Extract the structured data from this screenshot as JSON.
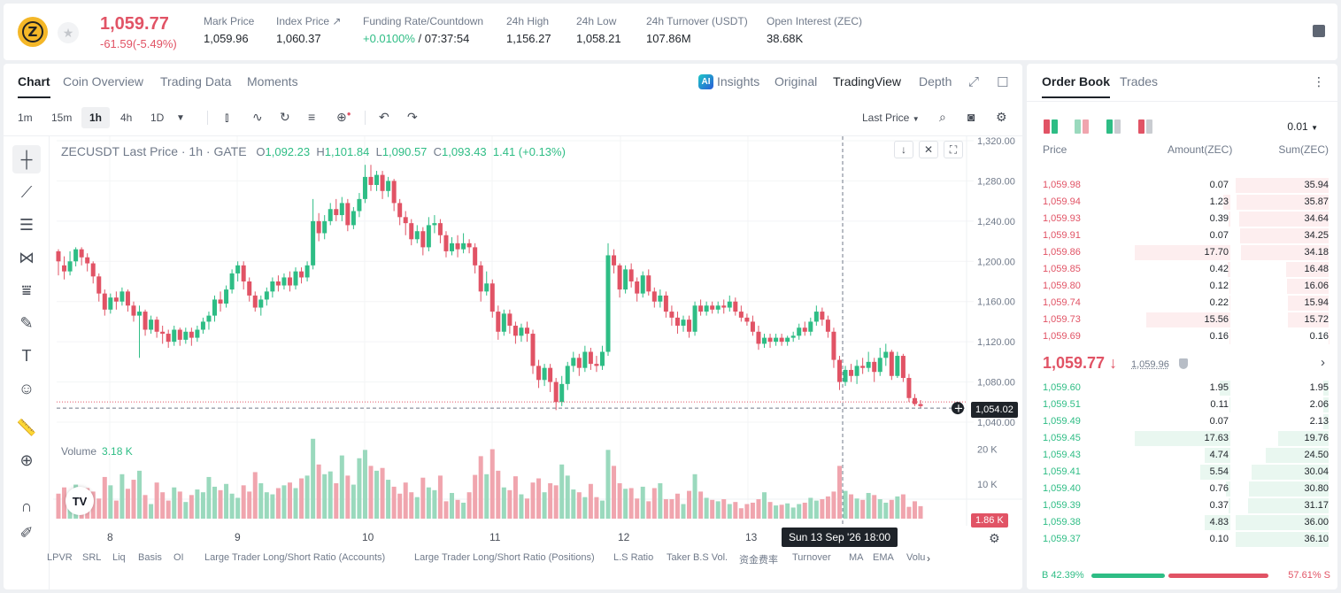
{
  "header": {
    "coin_symbol": "Z",
    "last_price": "1,059.77",
    "change": "-61.59(-5.49%)",
    "stats": [
      {
        "label": "Mark Price",
        "value": "1,059.96"
      },
      {
        "label": "Index Price ↗",
        "value": "1,060.37"
      },
      {
        "label": "Funding Rate/Countdown",
        "value_rate": "+0.0100%",
        "value_count": " / 07:37:54"
      },
      {
        "label": "24h High",
        "value": "1,156.27"
      },
      {
        "label": "24h Low",
        "value": "1,058.21"
      },
      {
        "label": "24h Turnover (USDT)",
        "value": "107.86M"
      },
      {
        "label": "Open Interest (ZEC)",
        "value": "38.68K"
      }
    ]
  },
  "chart_tabs": {
    "chart": "Chart",
    "coin_overview": "Coin Overview",
    "trading_data": "Trading Data",
    "moments": "Moments",
    "ai_badge": "AI",
    "insights": "Insights",
    "original": "Original",
    "tradingview": "TradingView",
    "depth": "Depth"
  },
  "toolbar": {
    "intervals": [
      "1m",
      "15m",
      "1h",
      "4h",
      "1D"
    ],
    "selected_interval": "1h",
    "last_price_select": "Last Price"
  },
  "legend": {
    "symbol": "ZECUSDT Last Price · 1h · GATE",
    "o_label": "O",
    "o": "1,092.23",
    "h_label": "H",
    "h": "1,101.84",
    "l_label": "L",
    "l": "1,090.57",
    "c_label": "C",
    "c": "1,093.43",
    "delta": "1.41 (+0.13%)"
  },
  "volume_legend": {
    "label": "Volume",
    "value": "3.18 K"
  },
  "price_tag": "1,054.02",
  "vol_tag": "1.86 K",
  "crosshair_time": "Sun 13 Sep '26   18:00",
  "indicators": [
    "LPVR",
    "SRL",
    "Liq",
    "Basis",
    "OI",
    "Large Trader Long/Short Ratio (Accounts)",
    "Large Trader Long/Short Ratio (Positions)",
    "L.S Ratio",
    "Taker B.S Vol.",
    "资金费率",
    "Turnover",
    "MA",
    "EMA",
    "Volu"
  ],
  "icons": {
    "coin_logo": "zcash-logo-icon",
    "favorite": "star-icon",
    "expand": "expand-icon",
    "window": "window-icon",
    "search": "search-icon",
    "camera": "camera-icon",
    "settings": "gear-icon"
  },
  "chart_data": {
    "type": "candlestick",
    "title": "ZECUSDT Last Price · 1h · GATE",
    "x_tick_labels": [
      "8",
      "9",
      "10",
      "11",
      "12",
      "13"
    ],
    "y_tick_labels": [
      "1,320.00",
      "1,280.00",
      "1,240.00",
      "1,200.00",
      "1,160.00",
      "1,120.00",
      "1,080.00",
      "1,040.00"
    ],
    "ylim": [
      1040,
      1320
    ],
    "volume_tick_labels": [
      "20 K",
      "10 K"
    ],
    "volume_ylim": [
      0,
      26000
    ],
    "candles": [
      [
        1210,
        1200,
        1212,
        1186
      ],
      [
        1196,
        1190,
        1205,
        1182
      ],
      [
        1190,
        1200,
        1210,
        1186
      ],
      [
        1200,
        1212,
        1214,
        1195
      ],
      [
        1212,
        1204,
        1214,
        1196
      ],
      [
        1204,
        1198,
        1208,
        1190
      ],
      [
        1198,
        1185,
        1200,
        1178
      ],
      [
        1185,
        1168,
        1188,
        1160
      ],
      [
        1168,
        1152,
        1172,
        1146
      ],
      [
        1152,
        1164,
        1168,
        1148
      ],
      [
        1164,
        1160,
        1170,
        1152
      ],
      [
        1160,
        1170,
        1174,
        1156
      ],
      [
        1170,
        1156,
        1172,
        1150
      ],
      [
        1156,
        1146,
        1160,
        1140
      ],
      [
        1146,
        1150,
        1156,
        1104
      ],
      [
        1150,
        1132,
        1152,
        1126
      ],
      [
        1132,
        1142,
        1146,
        1128
      ],
      [
        1142,
        1130,
        1145,
        1124
      ],
      [
        1130,
        1128,
        1136,
        1118
      ],
      [
        1128,
        1120,
        1132,
        1114
      ],
      [
        1120,
        1132,
        1136,
        1116
      ],
      [
        1132,
        1122,
        1134,
        1116
      ],
      [
        1122,
        1130,
        1134,
        1118
      ],
      [
        1130,
        1124,
        1134,
        1116
      ],
      [
        1124,
        1132,
        1136,
        1120
      ],
      [
        1132,
        1140,
        1144,
        1128
      ],
      [
        1140,
        1146,
        1150,
        1132
      ],
      [
        1146,
        1162,
        1166,
        1140
      ],
      [
        1162,
        1158,
        1170,
        1150
      ],
      [
        1158,
        1172,
        1176,
        1154
      ],
      [
        1172,
        1188,
        1192,
        1168
      ],
      [
        1188,
        1196,
        1200,
        1180
      ],
      [
        1196,
        1180,
        1200,
        1172
      ],
      [
        1180,
        1166,
        1184,
        1160
      ],
      [
        1166,
        1154,
        1170,
        1150
      ],
      [
        1154,
        1162,
        1166,
        1146
      ],
      [
        1162,
        1170,
        1174,
        1156
      ],
      [
        1170,
        1180,
        1184,
        1164
      ],
      [
        1180,
        1176,
        1186,
        1170
      ],
      [
        1176,
        1184,
        1188,
        1172
      ],
      [
        1184,
        1176,
        1190,
        1170
      ],
      [
        1176,
        1190,
        1194,
        1172
      ],
      [
        1190,
        1184,
        1194,
        1178
      ],
      [
        1184,
        1196,
        1200,
        1180
      ],
      [
        1196,
        1240,
        1262,
        1192
      ],
      [
        1240,
        1228,
        1248,
        1220
      ],
      [
        1228,
        1240,
        1246,
        1222
      ],
      [
        1240,
        1252,
        1258,
        1236
      ],
      [
        1252,
        1246,
        1262,
        1240
      ],
      [
        1246,
        1258,
        1264,
        1240
      ],
      [
        1258,
        1236,
        1262,
        1230
      ],
      [
        1236,
        1250,
        1254,
        1232
      ],
      [
        1250,
        1262,
        1268,
        1244
      ],
      [
        1262,
        1284,
        1296,
        1258
      ],
      [
        1284,
        1276,
        1296,
        1270
      ],
      [
        1276,
        1286,
        1290,
        1270
      ],
      [
        1286,
        1270,
        1290,
        1262
      ],
      [
        1270,
        1280,
        1284,
        1264
      ],
      [
        1280,
        1258,
        1282,
        1250
      ],
      [
        1258,
        1244,
        1262,
        1236
      ],
      [
        1244,
        1238,
        1250,
        1226
      ],
      [
        1238,
        1222,
        1242,
        1216
      ],
      [
        1222,
        1230,
        1236,
        1218
      ],
      [
        1230,
        1214,
        1234,
        1206
      ],
      [
        1214,
        1236,
        1244,
        1210
      ],
      [
        1236,
        1238,
        1246,
        1228
      ],
      [
        1238,
        1226,
        1242,
        1218
      ],
      [
        1226,
        1210,
        1230,
        1204
      ],
      [
        1210,
        1218,
        1224,
        1206
      ],
      [
        1218,
        1212,
        1226,
        1204
      ],
      [
        1212,
        1218,
        1228,
        1208
      ],
      [
        1218,
        1214,
        1222,
        1208
      ],
      [
        1214,
        1196,
        1218,
        1188
      ],
      [
        1196,
        1170,
        1200,
        1160
      ],
      [
        1170,
        1178,
        1190,
        1166
      ],
      [
        1178,
        1150,
        1182,
        1144
      ],
      [
        1150,
        1130,
        1156,
        1122
      ],
      [
        1130,
        1148,
        1152,
        1126
      ],
      [
        1148,
        1136,
        1152,
        1128
      ],
      [
        1136,
        1126,
        1140,
        1118
      ],
      [
        1126,
        1134,
        1138,
        1120
      ],
      [
        1134,
        1128,
        1140,
        1120
      ],
      [
        1128,
        1096,
        1132,
        1088
      ],
      [
        1096,
        1082,
        1102,
        1074
      ],
      [
        1082,
        1094,
        1098,
        1076
      ],
      [
        1094,
        1080,
        1098,
        1070
      ],
      [
        1080,
        1060,
        1084,
        1052
      ],
      [
        1060,
        1078,
        1086,
        1056
      ],
      [
        1078,
        1096,
        1100,
        1072
      ],
      [
        1096,
        1104,
        1110,
        1090
      ],
      [
        1104,
        1094,
        1108,
        1086
      ],
      [
        1094,
        1110,
        1116,
        1090
      ],
      [
        1110,
        1098,
        1114,
        1092
      ],
      [
        1098,
        1096,
        1106,
        1090
      ],
      [
        1096,
        1110,
        1116,
        1092
      ],
      [
        1110,
        1206,
        1218,
        1106
      ],
      [
        1206,
        1196,
        1212,
        1188
      ],
      [
        1196,
        1172,
        1198,
        1164
      ],
      [
        1172,
        1192,
        1196,
        1168
      ],
      [
        1192,
        1180,
        1198,
        1174
      ],
      [
        1180,
        1168,
        1184,
        1160
      ],
      [
        1168,
        1186,
        1190,
        1164
      ],
      [
        1186,
        1170,
        1192,
        1166
      ],
      [
        1170,
        1160,
        1174,
        1154
      ],
      [
        1160,
        1166,
        1172,
        1154
      ],
      [
        1166,
        1150,
        1170,
        1144
      ],
      [
        1150,
        1144,
        1156,
        1136
      ],
      [
        1144,
        1136,
        1150,
        1128
      ],
      [
        1136,
        1142,
        1146,
        1130
      ],
      [
        1142,
        1130,
        1146,
        1124
      ],
      [
        1130,
        1156,
        1160,
        1126
      ],
      [
        1156,
        1150,
        1162,
        1146
      ],
      [
        1150,
        1156,
        1160,
        1146
      ],
      [
        1156,
        1152,
        1160,
        1148
      ],
      [
        1152,
        1156,
        1160,
        1148
      ],
      [
        1156,
        1154,
        1162,
        1148
      ],
      [
        1154,
        1160,
        1166,
        1150
      ],
      [
        1160,
        1150,
        1164,
        1146
      ],
      [
        1150,
        1144,
        1156,
        1140
      ],
      [
        1144,
        1140,
        1148,
        1136
      ],
      [
        1140,
        1130,
        1146,
        1126
      ],
      [
        1130,
        1118,
        1136,
        1112
      ],
      [
        1118,
        1124,
        1128,
        1114
      ],
      [
        1124,
        1120,
        1128,
        1114
      ],
      [
        1120,
        1124,
        1128,
        1116
      ],
      [
        1124,
        1120,
        1128,
        1116
      ],
      [
        1120,
        1124,
        1126,
        1116
      ],
      [
        1124,
        1126,
        1130,
        1120
      ],
      [
        1126,
        1134,
        1138,
        1122
      ],
      [
        1134,
        1130,
        1140,
        1126
      ],
      [
        1130,
        1140,
        1144,
        1126
      ],
      [
        1140,
        1150,
        1156,
        1136
      ],
      [
        1150,
        1142,
        1154,
        1136
      ],
      [
        1142,
        1130,
        1146,
        1124
      ],
      [
        1130,
        1102,
        1134,
        1094
      ],
      [
        1102,
        1080,
        1106,
        1072
      ],
      [
        1080,
        1092,
        1096,
        1076
      ],
      [
        1092,
        1086,
        1098,
        1080
      ],
      [
        1086,
        1096,
        1102,
        1078
      ],
      [
        1096,
        1094,
        1104,
        1088
      ],
      [
        1094,
        1100,
        1110,
        1090
      ],
      [
        1100,
        1090,
        1104,
        1080
      ],
      [
        1090,
        1104,
        1114,
        1086
      ],
      [
        1104,
        1110,
        1118,
        1096
      ],
      [
        1110,
        1086,
        1112,
        1082
      ],
      [
        1086,
        1106,
        1110,
        1084
      ],
      [
        1106,
        1084,
        1108,
        1080
      ],
      [
        1084,
        1064,
        1088,
        1060
      ],
      [
        1064,
        1058,
        1068,
        1056
      ],
      [
        1058,
        1056,
        1062,
        1054
      ]
    ],
    "volumes": [
      7200,
      9000,
      5000,
      9800,
      6000,
      8800,
      7800,
      5800,
      12000,
      9600,
      5200,
      12800,
      8600,
      11200,
      13800,
      6800,
      4200,
      10400,
      7600,
      5200,
      9000,
      7800,
      4800,
      6800,
      8400,
      7600,
      12000,
      9200,
      8200,
      10000,
      7200,
      6000,
      9600,
      7800,
      13400,
      10200,
      7600,
      7000,
      8800,
      9600,
      10400,
      8800,
      11600,
      12400,
      23000,
      15600,
      12800,
      13600,
      10200,
      18200,
      12400,
      9800,
      17400,
      19800,
      15200,
      13800,
      14600,
      11200,
      9200,
      7200,
      10400,
      7600,
      6200,
      11800,
      9000,
      8200,
      12400,
      5000,
      7400,
      5400,
      4600,
      7600,
      12600,
      18000,
      12800,
      20000,
      13800,
      9000,
      8200,
      12200,
      7000,
      5800,
      10400,
      11600,
      7600,
      10200,
      9600,
      15600,
      12400,
      8400,
      7600,
      6200,
      10000,
      6200,
      5200,
      19800,
      15200,
      10200,
      8600,
      8800,
      5800,
      9200,
      5000,
      8800,
      10200,
      5600,
      5600,
      7200,
      4200,
      8000,
      12800,
      7800,
      6000,
      5400,
      5000,
      5600,
      4200,
      4800,
      3000,
      4200,
      4600,
      5600,
      7600,
      4800,
      3800,
      4000,
      4400,
      3200,
      4200,
      4600,
      6000,
      5200,
      5600,
      6400,
      7800,
      15200,
      8000,
      7000,
      5800,
      5400,
      7400,
      6800,
      5600,
      4600,
      5400,
      6400,
      7000,
      3400,
      5000,
      3600
    ]
  },
  "order_book": {
    "tabs": [
      "Order Book",
      "Trades"
    ],
    "precision": "0.01",
    "columns": [
      "Price",
      "Amount(ZEC)",
      "Sum(ZEC)"
    ],
    "asks": [
      {
        "price": "1,059.98",
        "amount": "0.07",
        "sum": "35.94",
        "amt": 0.07,
        "sm": 35.94
      },
      {
        "price": "1,059.94",
        "amount": "1.23",
        "sum": "35.87",
        "amt": 1.23,
        "sm": 35.87
      },
      {
        "price": "1,059.93",
        "amount": "0.39",
        "sum": "34.64",
        "amt": 0.39,
        "sm": 34.64
      },
      {
        "price": "1,059.91",
        "amount": "0.07",
        "sum": "34.25",
        "amt": 0.07,
        "sm": 34.25
      },
      {
        "price": "1,059.86",
        "amount": "17.70",
        "sum": "34.18",
        "amt": 17.7,
        "sm": 34.18
      },
      {
        "price": "1,059.85",
        "amount": "0.42",
        "sum": "16.48",
        "amt": 0.42,
        "sm": 16.48
      },
      {
        "price": "1,059.80",
        "amount": "0.12",
        "sum": "16.06",
        "amt": 0.12,
        "sm": 16.06
      },
      {
        "price": "1,059.74",
        "amount": "0.22",
        "sum": "15.94",
        "amt": 0.22,
        "sm": 15.94
      },
      {
        "price": "1,059.73",
        "amount": "15.56",
        "sum": "15.72",
        "amt": 15.56,
        "sm": 15.72
      },
      {
        "price": "1,059.69",
        "amount": "0.16",
        "sum": "0.16",
        "amt": 0.16,
        "sm": 0.16
      }
    ],
    "mid_price": "1,059.77 ↓",
    "mid_mark": "1,059.96",
    "bids": [
      {
        "price": "1,059.60",
        "amount": "1.95",
        "sum": "1.95",
        "amt": 1.95,
        "sm": 1.95
      },
      {
        "price": "1,059.51",
        "amount": "0.11",
        "sum": "2.06",
        "amt": 0.11,
        "sm": 2.06
      },
      {
        "price": "1,059.49",
        "amount": "0.07",
        "sum": "2.13",
        "amt": 0.07,
        "sm": 2.13
      },
      {
        "price": "1,059.45",
        "amount": "17.63",
        "sum": "19.76",
        "amt": 17.63,
        "sm": 19.76
      },
      {
        "price": "1,059.43",
        "amount": "4.74",
        "sum": "24.50",
        "amt": 4.74,
        "sm": 24.5
      },
      {
        "price": "1,059.41",
        "amount": "5.54",
        "sum": "30.04",
        "amt": 5.54,
        "sm": 30.04
      },
      {
        "price": "1,059.40",
        "amount": "0.76",
        "sum": "30.80",
        "amt": 0.76,
        "sm": 30.8
      },
      {
        "price": "1,059.39",
        "amount": "0.37",
        "sum": "31.17",
        "amt": 0.37,
        "sm": 31.17
      },
      {
        "price": "1,059.38",
        "amount": "4.83",
        "sum": "36.00",
        "amt": 4.83,
        "sm": 36.0
      },
      {
        "price": "1,059.37",
        "amount": "0.10",
        "sum": "36.10",
        "amt": 0.1,
        "sm": 36.1
      }
    ],
    "buy_ratio": "B 42.39%",
    "sell_ratio": "57.61% S",
    "buy_pct": 42.39
  },
  "colors": {
    "up": "#2ebd85",
    "down": "#e15365",
    "up_vol": "#9ad9bd",
    "down_vol": "#f0a5ae"
  }
}
